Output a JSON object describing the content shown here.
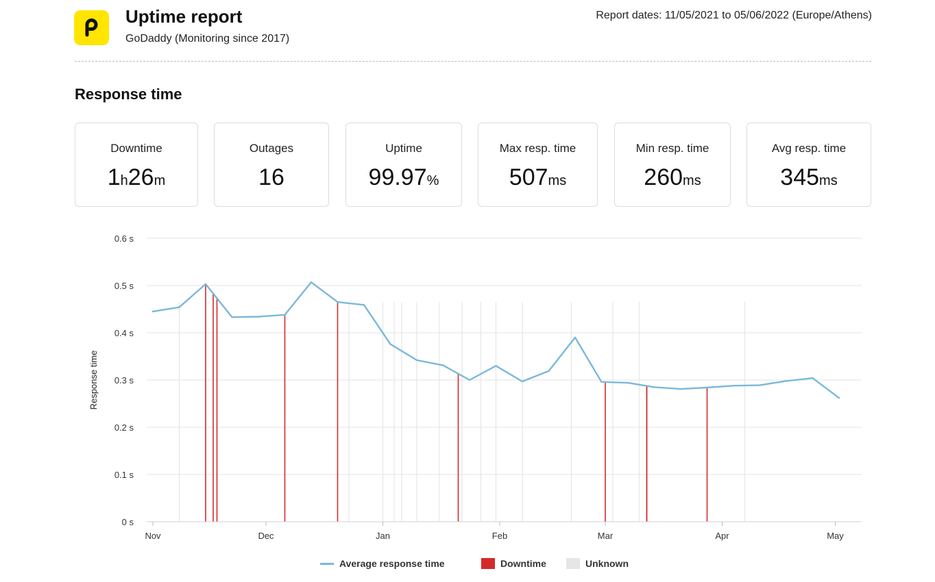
{
  "header": {
    "logo_letter": "p",
    "title": "Uptime report",
    "subtitle": "GoDaddy (Monitoring since 2017)",
    "report_dates": "Report dates: 11/05/2021 to 05/06/2022 (Europe/Athens)"
  },
  "section_title": "Response time",
  "stats": [
    {
      "label": "Downtime",
      "parts": [
        {
          "t": "1",
          "u": false
        },
        {
          "t": "h",
          "u": true
        },
        {
          "t": "26",
          "u": false
        },
        {
          "t": "m",
          "u": true
        }
      ]
    },
    {
      "label": "Outages",
      "parts": [
        {
          "t": "16",
          "u": false
        }
      ]
    },
    {
      "label": "Uptime",
      "parts": [
        {
          "t": "99.97",
          "u": false
        },
        {
          "t": "%",
          "u": true
        }
      ]
    },
    {
      "label": "Max resp. time",
      "parts": [
        {
          "t": "507",
          "u": false
        },
        {
          "t": "ms",
          "u": true
        }
      ]
    },
    {
      "label": "Min resp. time",
      "parts": [
        {
          "t": "260",
          "u": false
        },
        {
          "t": "ms",
          "u": true
        }
      ]
    },
    {
      "label": "Avg resp. time",
      "parts": [
        {
          "t": "345",
          "u": false
        },
        {
          "t": "ms",
          "u": true
        }
      ]
    }
  ],
  "colors": {
    "line": "#7ab8d9",
    "downtime": "#d42a2a",
    "unknown": "#e6e6e6",
    "grid": "#e3e3e3",
    "logo_bg": "#ffe500"
  },
  "chart_data": {
    "type": "line",
    "title": "",
    "xlabel": "",
    "ylabel": "Response time",
    "ylim": [
      0,
      0.6
    ],
    "y_ticks": [
      "0 s",
      "0.1 s",
      "0.2 s",
      "0.3 s",
      "0.4 s",
      "0.5 s",
      "0.6 s"
    ],
    "x_ticks": [
      {
        "label": "Nov",
        "date": "2021-11-01"
      },
      {
        "label": "Dec",
        "date": "2021-12-01"
      },
      {
        "label": "Jan",
        "date": "2022-01-01"
      },
      {
        "label": "Feb",
        "date": "2022-02-01"
      },
      {
        "label": "Mar",
        "date": "2022-03-01"
      },
      {
        "label": "Apr",
        "date": "2022-04-01"
      },
      {
        "label": "May",
        "date": "2022-05-01"
      }
    ],
    "grid": true,
    "legend_position": "bottom",
    "series": [
      {
        "name": "Average response time",
        "points": [
          {
            "x": "2021-11-01",
            "y": 0.445
          },
          {
            "x": "2021-11-08",
            "y": 0.454
          },
          {
            "x": "2021-11-15",
            "y": 0.503
          },
          {
            "x": "2021-11-22",
            "y": 0.433
          },
          {
            "x": "2021-11-29",
            "y": 0.434
          },
          {
            "x": "2021-12-06",
            "y": 0.438
          },
          {
            "x": "2021-12-13",
            "y": 0.507
          },
          {
            "x": "2021-12-20",
            "y": 0.465
          },
          {
            "x": "2021-12-27",
            "y": 0.459
          },
          {
            "x": "2022-01-03",
            "y": 0.376
          },
          {
            "x": "2022-01-10",
            "y": 0.342
          },
          {
            "x": "2022-01-17",
            "y": 0.331
          },
          {
            "x": "2022-01-24",
            "y": 0.3
          },
          {
            "x": "2022-01-31",
            "y": 0.33
          },
          {
            "x": "2022-02-07",
            "y": 0.297
          },
          {
            "x": "2022-02-14",
            "y": 0.319
          },
          {
            "x": "2022-02-21",
            "y": 0.39
          },
          {
            "x": "2022-02-28",
            "y": 0.296
          },
          {
            "x": "2022-03-07",
            "y": 0.294
          },
          {
            "x": "2022-03-14",
            "y": 0.285
          },
          {
            "x": "2022-03-21",
            "y": 0.281
          },
          {
            "x": "2022-03-28",
            "y": 0.284
          },
          {
            "x": "2022-04-04",
            "y": 0.288
          },
          {
            "x": "2022-04-11",
            "y": 0.289
          },
          {
            "x": "2022-04-18",
            "y": 0.298
          },
          {
            "x": "2022-04-25",
            "y": 0.304
          },
          {
            "x": "2022-05-02",
            "y": 0.262
          }
        ]
      }
    ],
    "downtime_dates": [
      "2021-11-15",
      "2021-11-17",
      "2021-11-18",
      "2021-12-06",
      "2021-12-20",
      "2022-01-21",
      "2022-03-01",
      "2022-03-12",
      "2022-03-12",
      "2022-03-28"
    ],
    "unknown_dates": [
      "2021-11-08",
      "2021-11-18",
      "2021-12-23",
      "2022-01-01",
      "2022-01-04",
      "2022-01-06",
      "2022-01-10",
      "2022-01-16",
      "2022-01-22",
      "2022-01-27",
      "2022-01-31",
      "2022-02-07",
      "2022-02-20",
      "2022-03-03",
      "2022-03-10",
      "2022-04-07"
    ],
    "legend": [
      {
        "label": "Average response time",
        "kind": "line"
      },
      {
        "label": "Downtime",
        "kind": "box"
      },
      {
        "label": "Unknown",
        "kind": "box"
      }
    ]
  }
}
